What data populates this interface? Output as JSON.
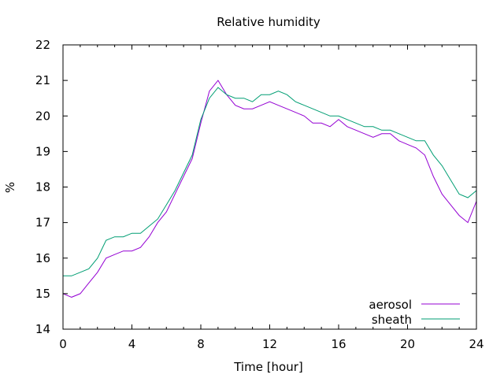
{
  "chart_data": {
    "type": "line",
    "title": "Relative humidity",
    "xlabel": "Time [hour]",
    "ylabel": "%",
    "xlim": [
      0,
      24
    ],
    "ylim": [
      14,
      22
    ],
    "xticks": [
      0,
      4,
      8,
      12,
      16,
      20,
      24
    ],
    "xtick_labels": [
      "0",
      "4",
      "8",
      "12",
      "16",
      "20",
      "24"
    ],
    "yticks": [
      14,
      15,
      16,
      17,
      18,
      19,
      20,
      21,
      22
    ],
    "ytick_labels": [
      "14",
      "15",
      "16",
      "17",
      "18",
      "19",
      "20",
      "21",
      "22"
    ],
    "grid": false,
    "legend": "bottom-right",
    "series": [
      {
        "name": "aerosol",
        "color": "#9400d3",
        "x": [
          0,
          0.5,
          1,
          1.5,
          2,
          2.5,
          3,
          3.5,
          4,
          4.5,
          5,
          5.5,
          6,
          6.5,
          7,
          7.5,
          8,
          8.5,
          9,
          9.5,
          10,
          10.5,
          11,
          11.5,
          12,
          12.5,
          13,
          13.5,
          14,
          14.5,
          15,
          15.5,
          16,
          16.5,
          17,
          17.5,
          18,
          18.5,
          19,
          19.5,
          20,
          20.5,
          21,
          21.5,
          22,
          22.5,
          23,
          23.5,
          24
        ],
        "y": [
          15.0,
          14.9,
          15.0,
          15.3,
          15.6,
          16.0,
          16.1,
          16.2,
          16.2,
          16.3,
          16.6,
          17.0,
          17.3,
          17.8,
          18.3,
          18.8,
          19.8,
          20.7,
          21.0,
          20.6,
          20.3,
          20.2,
          20.2,
          20.3,
          20.4,
          20.3,
          20.2,
          20.1,
          20.0,
          19.8,
          19.8,
          19.7,
          19.9,
          19.7,
          19.6,
          19.5,
          19.4,
          19.5,
          19.5,
          19.3,
          19.2,
          19.1,
          18.9,
          18.3,
          17.8,
          17.5,
          17.2,
          17.0,
          17.6
        ]
      },
      {
        "name": "sheath",
        "color": "#009e73",
        "x": [
          0,
          0.5,
          1,
          1.5,
          2,
          2.5,
          3,
          3.5,
          4,
          4.5,
          5,
          5.5,
          6,
          6.5,
          7,
          7.5,
          8,
          8.5,
          9,
          9.5,
          10,
          10.5,
          11,
          11.5,
          12,
          12.5,
          13,
          13.5,
          14,
          14.5,
          15,
          15.5,
          16,
          16.5,
          17,
          17.5,
          18,
          18.5,
          19,
          19.5,
          20,
          20.5,
          21,
          21.5,
          22,
          22.5,
          23,
          23.5,
          24
        ],
        "y": [
          15.5,
          15.5,
          15.6,
          15.7,
          16.0,
          16.5,
          16.6,
          16.6,
          16.7,
          16.7,
          16.9,
          17.1,
          17.5,
          17.9,
          18.4,
          18.9,
          19.9,
          20.5,
          20.8,
          20.6,
          20.5,
          20.5,
          20.4,
          20.6,
          20.6,
          20.7,
          20.6,
          20.4,
          20.3,
          20.2,
          20.1,
          20.0,
          20.0,
          19.9,
          19.8,
          19.7,
          19.7,
          19.6,
          19.6,
          19.5,
          19.4,
          19.3,
          19.3,
          18.9,
          18.6,
          18.2,
          17.8,
          17.7,
          17.9
        ]
      }
    ]
  }
}
